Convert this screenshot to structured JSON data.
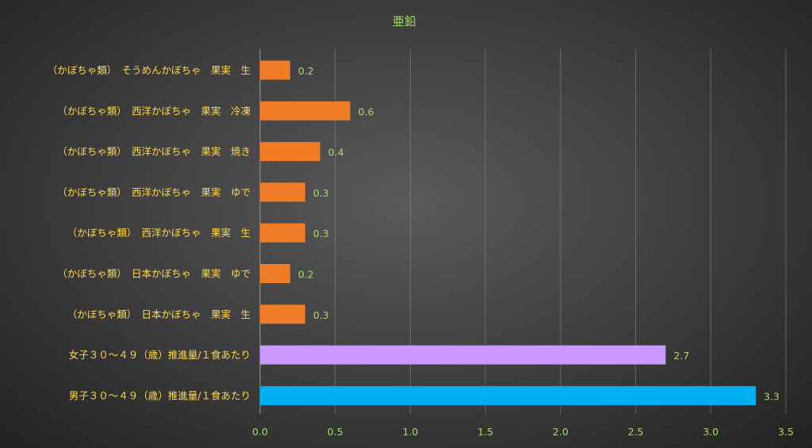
{
  "chart_data": {
    "type": "bar",
    "orientation": "horizontal",
    "title": "亜鉛",
    "xlim": [
      0,
      3.5
    ],
    "x_ticks": [
      "0.0",
      "0.5",
      "1.0",
      "1.5",
      "2.0",
      "2.5",
      "3.0",
      "3.5"
    ],
    "grid": true,
    "categories": [
      "（かぼちゃ類）　そうめんかぼちゃ　果実　生",
      "（かぼちゃ類）　西洋かぼちゃ　果実　冷凍",
      "（かぼちゃ類）　西洋かぼちゃ　果実　焼き",
      "（かぼちゃ類）　西洋かぼちゃ　果実　ゆで",
      "（かぼちゃ類）　西洋かぼちゃ　果実　生",
      "（かぼちゃ類）　日本かぼちゃ　果実　ゆで",
      "（かぼちゃ類）　日本かぼちゃ　果実　生",
      "女子３０～４９（歳）推進量/１食あたり",
      "男子３０～４９（歳）推進量/１食あたり"
    ],
    "values": [
      0.2,
      0.6,
      0.4,
      0.3,
      0.3,
      0.2,
      0.3,
      2.7,
      3.3
    ],
    "value_labels": [
      "0.2",
      "0.6",
      "0.4",
      "0.3",
      "0.3",
      "0.2",
      "0.3",
      "2.7",
      "3.3"
    ],
    "bar_colors": [
      "#f07c28",
      "#f07c28",
      "#f07c28",
      "#f07c28",
      "#f07c28",
      "#f07c28",
      "#f07c28",
      "#c99bff",
      "#00b0f0"
    ],
    "label_color": "#ffd84a",
    "value_label_color": "#a7d86a",
    "tick_label_color": "#a7d86a",
    "title_color": "#a7d86a"
  }
}
